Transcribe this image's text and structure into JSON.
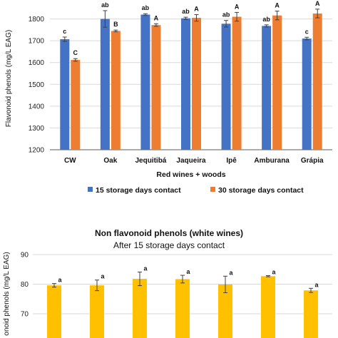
{
  "colors": {
    "series1": "#4472C4",
    "series2": "#ED7D31",
    "bar2": "#FFC000",
    "grid": "#D9D9D9",
    "axis": "#595959",
    "errorbar": "#404040"
  },
  "chart_data": [
    {
      "type": "bar",
      "title": "",
      "xlabel": "Red wines + woods",
      "ylabel": "Flavonoid phenols (mg/L EAG)",
      "ylim": [
        1200,
        1900
      ],
      "yticks": [
        1200,
        1300,
        1400,
        1500,
        1600,
        1700,
        1800,
        1900
      ],
      "grid": true,
      "legend_position": "bottom",
      "categories": [
        "CW",
        "Oak",
        "Jequitibá",
        "Jaqueira",
        "Ipê",
        "Amburana",
        "Grápia"
      ],
      "series": [
        {
          "name": "15 storage days contact",
          "values": [
            1707,
            1800,
            1820,
            1803,
            1778,
            1768,
            1710
          ],
          "errors": [
            10,
            38,
            4,
            5,
            15,
            5,
            6
          ],
          "labels": [
            "c",
            "ab",
            "ab",
            "ab",
            "ab",
            "ab",
            "c"
          ]
        },
        {
          "name": "30 storage days contact",
          "values": [
            1612,
            1745,
            1772,
            1805,
            1810,
            1816,
            1825
          ],
          "errors": [
            6,
            4,
            6,
            15,
            20,
            20,
            20
          ],
          "labels": [
            "C",
            "B",
            "A",
            "A",
            "A",
            "A",
            "A"
          ]
        }
      ]
    },
    {
      "type": "bar",
      "title": "Non flavonoid phenols (white wines)",
      "subtitle": "After 15 storage days contact",
      "ylabel": "onoid phenols (mg/L EAG)",
      "ylim": [
        60,
        90
      ],
      "yticks": [
        70,
        80,
        90
      ],
      "grid": true,
      "series": [
        {
          "values": [
            79.6,
            79.6,
            81.8,
            81.7,
            79.9,
            82.7,
            77.9
          ],
          "errors": [
            0.6,
            1.8,
            2.3,
            1.3,
            2.8,
            0.2,
            0.7
          ],
          "labels": [
            "a",
            "a",
            "a",
            "a",
            "a",
            "a",
            "a"
          ]
        }
      ]
    }
  ]
}
